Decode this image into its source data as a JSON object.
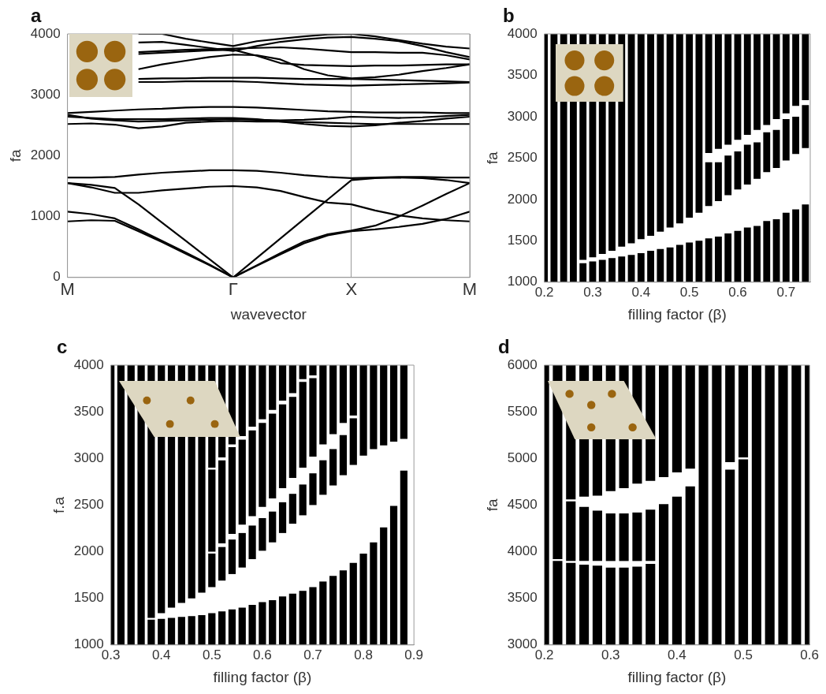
{
  "chart_data": [
    {
      "type": "line",
      "annotations": [
        "a"
      ],
      "xlabel": "wavevector",
      "ylabel": "fa",
      "categories": [
        "M",
        null,
        null,
        null,
        null,
        null,
        null,
        "Γ",
        null,
        null,
        null,
        null,
        "X",
        null,
        null,
        null,
        null,
        "M"
      ],
      "ylim": [
        0,
        4000
      ],
      "yticks": [
        0,
        1000,
        2000,
        3000,
        4000
      ],
      "grid": "x",
      "legend": false,
      "marker": "none",
      "line_style": "solid",
      "series": [
        {
          "color": "#000000",
          "values": [
            920,
            940,
            930,
            760,
            580,
            390,
            200,
            0,
            190,
            380,
            560,
            690,
            760,
            790,
            830,
            880,
            960,
            1080
          ]
        },
        {
          "color": "#000000",
          "values": [
            1080,
            1040,
            970,
            790,
            600,
            410,
            210,
            0,
            200,
            400,
            590,
            710,
            770,
            850,
            1000,
            1180,
            1370,
            1550
          ]
        },
        {
          "color": "#000000",
          "values": [
            1550,
            1520,
            1470,
            1200,
            900,
            600,
            300,
            0,
            320,
            640,
            960,
            1280,
            1600,
            1630,
            1640,
            1630,
            1600,
            1550
          ]
        },
        {
          "color": "#000000",
          "values": [
            1550,
            1480,
            1390,
            1390,
            1430,
            1460,
            1490,
            1500,
            1480,
            1420,
            1320,
            1230,
            1200,
            1100,
            1020,
            970,
            940,
            920
          ]
        },
        {
          "color": "#000000",
          "values": [
            1640,
            1640,
            1650,
            1690,
            1720,
            1740,
            1760,
            1760,
            1750,
            1720,
            1680,
            1650,
            1630,
            1640,
            1650,
            1650,
            1640,
            1640
          ]
        },
        {
          "color": "#000000",
          "values": [
            2700,
            2720,
            2740,
            2760,
            2770,
            2790,
            2800,
            2800,
            2790,
            2770,
            2750,
            2730,
            2720,
            2710,
            2710,
            2710,
            2700,
            2700
          ]
        },
        {
          "color": "#000000",
          "values": [
            2670,
            2610,
            2580,
            2560,
            2570,
            2580,
            2590,
            2600,
            2590,
            2580,
            2590,
            2610,
            2640,
            2630,
            2620,
            2630,
            2650,
            2670
          ]
        },
        {
          "color": "#000000",
          "values": [
            2520,
            2530,
            2510,
            2450,
            2480,
            2540,
            2560,
            2570,
            2560,
            2560,
            2550,
            2540,
            2530,
            2520,
            2520,
            2520,
            2520,
            2520
          ]
        },
        {
          "color": "#000000",
          "values": [
            2640,
            2620,
            2600,
            2600,
            2600,
            2610,
            2620,
            2620,
            2600,
            2560,
            2520,
            2490,
            2480,
            2500,
            2540,
            2570,
            2610,
            2640
          ]
        },
        {
          "color": "#000000",
          "values": [
            null,
            null,
            null,
            3210,
            3210,
            3220,
            3220,
            3220,
            3210,
            3190,
            3170,
            3160,
            3150,
            3160,
            3170,
            3180,
            3190,
            3200
          ]
        },
        {
          "color": "#000000",
          "values": [
            null,
            null,
            null,
            3420,
            3500,
            3560,
            3620,
            3660,
            3650,
            3580,
            3420,
            3320,
            3270,
            3290,
            3330,
            3390,
            3440,
            3500
          ]
        },
        {
          "color": "#000000",
          "values": [
            null,
            null,
            null,
            3670,
            3690,
            3710,
            3730,
            3740,
            3640,
            3520,
            3490,
            3480,
            3470,
            3480,
            3480,
            3490,
            3500,
            3500
          ]
        },
        {
          "color": "#000000",
          "values": [
            null,
            null,
            null,
            3700,
            3720,
            3740,
            3750,
            3760,
            3770,
            3780,
            3760,
            3730,
            3700,
            3700,
            3690,
            3690,
            3650,
            3580
          ]
        },
        {
          "color": "#000000",
          "values": [
            null,
            null,
            null,
            3860,
            3870,
            3820,
            3770,
            3720,
            3800,
            3870,
            3910,
            3940,
            3950,
            3920,
            3880,
            3800,
            3700,
            3620
          ]
        },
        {
          "color": "#000000",
          "values": [
            null,
            null,
            null,
            4000,
            4000,
            3920,
            3860,
            3800,
            3880,
            3920,
            3960,
            3990,
            4000,
            3960,
            3900,
            3840,
            3790,
            3760
          ]
        },
        {
          "color": "#000000",
          "values": [
            null,
            null,
            null,
            3260,
            3270,
            3270,
            3280,
            3280,
            3280,
            3270,
            3260,
            3260,
            3260,
            3250,
            3240,
            3230,
            3220,
            3210
          ]
        }
      ]
    },
    {
      "type": "bar",
      "annotations": [
        "b"
      ],
      "xlabel": "filling factor (β)",
      "ylabel": "fa",
      "xlim": [
        0.2,
        0.75
      ],
      "xticks": [
        0.2,
        0.3,
        0.4,
        0.5,
        0.6,
        0.7
      ],
      "ylim": [
        1000,
        4000
      ],
      "yticks": [
        1000,
        1500,
        2000,
        2500,
        3000,
        3500,
        4000
      ],
      "grid": false,
      "legend": false,
      "x": [
        0.2,
        0.22,
        0.24,
        0.26,
        0.28,
        0.3,
        0.32,
        0.34,
        0.36,
        0.38,
        0.4,
        0.42,
        0.44,
        0.46,
        0.48,
        0.5,
        0.52,
        0.54,
        0.56,
        0.58,
        0.6,
        0.62,
        0.64,
        0.66,
        0.68,
        0.7,
        0.72,
        0.74
      ],
      "series": [
        {
          "color": "#000000",
          "base": [
            1000,
            1000,
            1000,
            1000,
            1000,
            1000,
            1000,
            1000,
            1000,
            1000,
            1000,
            1000,
            1000,
            1000,
            1000,
            1000,
            1000,
            1000,
            1000,
            1000,
            1000,
            1000,
            1000,
            1000,
            1000,
            1000,
            1000,
            1000
          ],
          "values": [
            3000,
            3000,
            3000,
            3000,
            230,
            250,
            270,
            290,
            310,
            330,
            350,
            380,
            400,
            420,
            450,
            480,
            500,
            530,
            550,
            590,
            620,
            660,
            680,
            740,
            760,
            840,
            880,
            940
          ]
        },
        {
          "color": "#000000",
          "base": [
            null,
            null,
            null,
            null,
            1270,
            1300,
            1340,
            1380,
            1430,
            1470,
            1520,
            1560,
            1610,
            1660,
            1710,
            1780,
            1840,
            1920,
            1980,
            2050,
            2120,
            2180,
            2250,
            2330,
            2380,
            2470,
            2550,
            2620
          ],
          "values": [
            null,
            null,
            null,
            null,
            2730,
            2700,
            2660,
            2620,
            2570,
            2530,
            2480,
            2440,
            2390,
            2340,
            2290,
            2220,
            2160,
            530,
            470,
            480,
            460,
            480,
            440,
            480,
            460,
            500,
            450,
            520
          ]
        },
        {
          "color": "#000000",
          "base": [
            null,
            null,
            null,
            null,
            null,
            null,
            null,
            null,
            null,
            null,
            null,
            null,
            null,
            null,
            null,
            null,
            null,
            2560,
            2610,
            2660,
            2720,
            2780,
            2840,
            2900,
            2970,
            3040,
            3130,
            3200
          ],
          "values": [
            null,
            null,
            null,
            null,
            null,
            null,
            null,
            null,
            null,
            null,
            null,
            null,
            null,
            null,
            null,
            null,
            null,
            1440,
            1390,
            1340,
            1280,
            1220,
            1160,
            1100,
            1030,
            960,
            870,
            800
          ]
        }
      ]
    },
    {
      "type": "bar",
      "annotations": [
        "c"
      ],
      "xlabel": "filling factor (β)",
      "ylabel": "f.a",
      "xlim": [
        0.3,
        0.9
      ],
      "xticks": [
        0.3,
        0.4,
        0.5,
        0.6,
        0.7,
        0.8,
        0.9
      ],
      "ylim": [
        1000,
        4000
      ],
      "yticks": [
        1000,
        1500,
        2000,
        2500,
        3000,
        3500,
        4000
      ],
      "grid": false,
      "legend": false,
      "x": [
        0.3,
        0.32,
        0.34,
        0.36,
        0.38,
        0.4,
        0.42,
        0.44,
        0.46,
        0.48,
        0.5,
        0.52,
        0.54,
        0.56,
        0.58,
        0.6,
        0.62,
        0.64,
        0.66,
        0.68,
        0.7,
        0.72,
        0.74,
        0.76,
        0.78,
        0.8,
        0.82,
        0.84,
        0.86,
        0.88
      ],
      "series": [
        {
          "color": "#000000",
          "base": [
            1000,
            1000,
            1000,
            1000,
            1000,
            1000,
            1000,
            1000,
            1000,
            1000,
            1000,
            1000,
            1000,
            1000,
            1000,
            1000,
            1000,
            1000,
            1000,
            1000,
            1000,
            1000,
            1000,
            1000,
            1000,
            1000,
            1000,
            1000,
            1000,
            1000
          ],
          "values": [
            3000,
            3000,
            3000,
            3000,
            270,
            280,
            290,
            300,
            310,
            320,
            340,
            360,
            380,
            400,
            430,
            460,
            480,
            520,
            550,
            580,
            620,
            680,
            740,
            800,
            880,
            980,
            1100,
            1260,
            1490,
            1870
          ]
        },
        {
          "color": "#000000",
          "base": [
            null,
            null,
            null,
            null,
            1290,
            1340,
            1400,
            1450,
            1500,
            1560,
            1620,
            1690,
            1760,
            1830,
            1920,
            2010,
            2100,
            2200,
            2300,
            2390,
            2500,
            2610,
            2710,
            2820,
            2930,
            3030,
            3100,
            3140,
            3180,
            3210
          ],
          "values": [
            null,
            null,
            null,
            null,
            2710,
            2660,
            2600,
            2550,
            2500,
            2440,
            360,
            360,
            370,
            370,
            360,
            350,
            330,
            330,
            320,
            330,
            340,
            370,
            390,
            430,
            500,
            970,
            900,
            860,
            820,
            790
          ]
        },
        {
          "color": "#000000",
          "base": [
            null,
            null,
            null,
            null,
            null,
            null,
            null,
            null,
            null,
            null,
            2000,
            2090,
            2190,
            2290,
            2380,
            2480,
            2570,
            2680,
            2790,
            2900,
            3020,
            3150,
            3260,
            3380,
            3460,
            null,
            null,
            null,
            null,
            null
          ],
          "values": [
            null,
            null,
            null,
            null,
            null,
            null,
            null,
            null,
            null,
            null,
            880,
            890,
            930,
            910,
            920,
            900,
            910,
            900,
            870,
            920,
            840,
            850,
            740,
            620,
            540,
            null,
            null,
            null,
            null,
            null
          ]
        },
        {
          "color": "#000000",
          "base": [
            null,
            null,
            null,
            null,
            null,
            null,
            null,
            null,
            null,
            null,
            2900,
            3010,
            3150,
            3240,
            3340,
            3420,
            3520,
            3620,
            3700,
            3850,
            3890,
            null,
            null,
            null,
            null,
            null,
            null,
            null,
            null,
            null
          ],
          "values": [
            null,
            null,
            null,
            null,
            null,
            null,
            null,
            null,
            null,
            null,
            1100,
            990,
            850,
            760,
            660,
            580,
            480,
            380,
            300,
            150,
            110,
            null,
            null,
            null,
            null,
            null,
            null,
            null,
            null,
            null
          ]
        }
      ]
    },
    {
      "type": "bar",
      "annotations": [
        "d"
      ],
      "xlabel": "filling factor (β)",
      "ylabel": "fa",
      "xlim": [
        0.2,
        0.6
      ],
      "xticks": [
        0.2,
        0.3,
        0.4,
        0.5,
        0.6
      ],
      "ylim": [
        3000,
        6000
      ],
      "yticks": [
        3000,
        3500,
        4000,
        4500,
        5000,
        5500,
        6000
      ],
      "grid": false,
      "legend": false,
      "x": [
        0.2,
        0.22,
        0.24,
        0.26,
        0.28,
        0.3,
        0.32,
        0.34,
        0.36,
        0.38,
        0.4,
        0.42,
        0.44,
        0.46,
        0.48,
        0.5,
        0.52,
        0.54,
        0.56,
        0.58,
        0.6
      ],
      "series": [
        {
          "color": "#000000",
          "base": [
            3000,
            3000,
            3000,
            3000,
            3000,
            3000,
            3000,
            3000,
            3000,
            3000,
            3000,
            3000,
            3000,
            3000,
            3000,
            3000,
            3000,
            3000,
            3000,
            3000,
            3000
          ],
          "values": [
            3000,
            900,
            880,
            860,
            850,
            830,
            830,
            840,
            870,
            1510,
            1590,
            1700,
            3000,
            3000,
            1880,
            1990,
            3000,
            3000,
            3000,
            3000,
            3000
          ]
        },
        {
          "color": "#000000",
          "base": [
            null,
            3920,
            3900,
            3900,
            3900,
            3900,
            3900,
            3900,
            3900,
            4800,
            4850,
            4890,
            null,
            null,
            4960,
            5010,
            null,
            null,
            null,
            null,
            null
          ],
          "values": [
            null,
            2080,
            640,
            580,
            540,
            510,
            510,
            520,
            550,
            1200,
            1150,
            1110,
            null,
            null,
            1040,
            990,
            null,
            null,
            null,
            null,
            null
          ]
        },
        {
          "color": "#000000",
          "base": [
            null,
            null,
            4560,
            4590,
            4600,
            4650,
            4680,
            4730,
            4760,
            null,
            null,
            null,
            null,
            null,
            null,
            null,
            null,
            null,
            null,
            null,
            null
          ],
          "values": [
            null,
            null,
            1440,
            1410,
            1400,
            1350,
            1320,
            1270,
            1240,
            null,
            null,
            null,
            null,
            null,
            null,
            null,
            null,
            null,
            null,
            null,
            null
          ]
        }
      ]
    }
  ]
}
